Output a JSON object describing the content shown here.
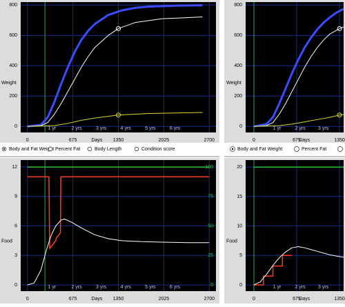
{
  "chart_data": [
    {
      "type": "line",
      "ylabel": "Weight",
      "xlabel": "Days",
      "xlim": [
        -100,
        2800
      ],
      "ylim": [
        -40,
        820
      ],
      "xticks": [
        0,
        675,
        1350,
        2025,
        2700
      ],
      "yticks": [
        0,
        200,
        400,
        600,
        800
      ],
      "grid": true,
      "year_ticks": [
        {
          "value": 365,
          "label": "1 yr"
        },
        {
          "value": 730,
          "label": "2 yrs"
        },
        {
          "value": 1095,
          "label": "3 yrs"
        },
        {
          "value": 1460,
          "label": "4 yrs"
        },
        {
          "value": 1825,
          "label": "5 yrs"
        },
        {
          "value": 2190,
          "label": "6 yrs"
        }
      ],
      "vline": 260,
      "vline_color": "#2fa84a",
      "series": [
        {
          "color": "#3a4cff",
          "width": 3,
          "x": [
            0,
            200,
            300,
            400,
            500,
            600,
            700,
            800,
            900,
            1000,
            1200,
            1400,
            1600,
            1800,
            2200,
            2600
          ],
          "values": [
            0,
            10,
            60,
            160,
            280,
            390,
            490,
            570,
            630,
            675,
            735,
            765,
            782,
            790,
            796,
            799
          ]
        },
        {
          "color": "#ffffff",
          "width": 1,
          "x": [
            0,
            200,
            300,
            400,
            500,
            600,
            700,
            800,
            900,
            1000,
            1200,
            1350,
            1600,
            2000,
            2600
          ],
          "values": [
            0,
            5,
            25,
            80,
            150,
            230,
            310,
            390,
            460,
            520,
            600,
            645,
            685,
            710,
            722
          ]
        },
        {
          "color": "#d8d830",
          "width": 1,
          "x": [
            0,
            400,
            600,
            800,
            1000,
            1350,
            1800,
            2600
          ],
          "values": [
            0,
            5,
            20,
            40,
            55,
            75,
            85,
            92
          ]
        }
      ],
      "markers": [
        {
          "x": 1350,
          "y": 645,
          "color": "#ffffff"
        },
        {
          "x": 1350,
          "y": 75,
          "color": "#d8d830"
        }
      ]
    },
    {
      "type": "line",
      "ylabel": "Weight",
      "xlabel": "Days",
      "xlim": [
        -130,
        1415
      ],
      "ylim": [
        -40,
        820
      ],
      "xticks": [
        0,
        675,
        1350
      ],
      "yticks": [
        0,
        200,
        400,
        600,
        800
      ],
      "grid": true,
      "year_ticks": [
        {
          "value": 365,
          "label": "1 yr"
        },
        {
          "value": 730,
          "label": "2 yrs"
        },
        {
          "value": 1095,
          "label": "3 yrs"
        }
      ],
      "vline": 0,
      "vline_color": "#2fa84a",
      "series": [
        {
          "color": "#3a4cff",
          "width": 3,
          "x": [
            0,
            200,
            300,
            400,
            500,
            600,
            700,
            800,
            900,
            1000,
            1100,
            1200,
            1300,
            1415
          ],
          "values": [
            0,
            15,
            60,
            150,
            250,
            350,
            440,
            520,
            585,
            640,
            685,
            720,
            750,
            775
          ]
        },
        {
          "color": "#ffffff",
          "width": 1,
          "x": [
            0,
            200,
            300,
            400,
            500,
            600,
            700,
            800,
            900,
            1000,
            1100,
            1200,
            1350,
            1415
          ],
          "values": [
            0,
            5,
            25,
            80,
            150,
            230,
            310,
            390,
            460,
            520,
            570,
            610,
            645,
            655
          ]
        },
        {
          "color": "#d8d830",
          "width": 1,
          "x": [
            0,
            400,
            600,
            800,
            1000,
            1200,
            1350,
            1415
          ],
          "values": [
            0,
            5,
            15,
            30,
            45,
            60,
            75,
            78
          ]
        }
      ],
      "markers": [
        {
          "x": 1350,
          "y": 645,
          "color": "#ffffff"
        },
        {
          "x": 1350,
          "y": 75,
          "color": "#d8d830"
        }
      ]
    },
    {
      "type": "line",
      "ylabel": "Food",
      "xlabel": "Days",
      "xlim": [
        -100,
        2800
      ],
      "ylim": [
        -0.63,
        12.7
      ],
      "xticks": [
        0,
        675,
        1350,
        2025,
        2700
      ],
      "yticks": [
        0,
        3,
        6,
        9,
        12
      ],
      "grid": true,
      "y2lim": [
        -5.3,
        105.9
      ],
      "y2ticks": [
        0,
        25,
        50,
        75,
        100
      ],
      "y2_color": "#2fbf3a",
      "year_ticks": [
        {
          "value": 365,
          "label": "1 yr"
        },
        {
          "value": 730,
          "label": "2 yrs"
        },
        {
          "value": 1095,
          "label": "3 yrs"
        },
        {
          "value": 1460,
          "label": "4 yrs"
        },
        {
          "value": 1825,
          "label": "5 yrs"
        },
        {
          "value": 2190,
          "label": "6 yrs"
        }
      ],
      "vline": 260,
      "vline_color": "#2fa84a",
      "series": [
        {
          "color": "#2fbf3a",
          "width": 1.5,
          "axis": "y2",
          "x": [
            0,
            2700
          ],
          "values": [
            100,
            100
          ]
        },
        {
          "color": "#ff3a1c",
          "width": 1.5,
          "x": [
            0,
            320,
            330,
            420,
            430,
            490,
            495,
            2700
          ],
          "values": [
            11,
            11,
            3.7,
            4.5,
            4.8,
            5.3,
            11,
            11
          ]
        },
        {
          "color": "#ffffff",
          "width": 1,
          "x": [
            0,
            100,
            200,
            280,
            350,
            420,
            500,
            550,
            650,
            800,
            1000,
            1200,
            1400,
            1700,
            2000,
            2400,
            2700
          ],
          "values": [
            0,
            0.2,
            1.5,
            3.5,
            5,
            6,
            6.6,
            6.7,
            6.4,
            5.8,
            5.1,
            4.7,
            4.5,
            4.4,
            4.35,
            4.3,
            4.3
          ]
        }
      ],
      "markers": []
    },
    {
      "type": "line",
      "ylabel": "Food",
      "xlabel": "Days",
      "xlim": [
        -130,
        1415
      ],
      "ylim": [
        -1.06,
        21.2
      ],
      "xticks": [
        0,
        675,
        1350
      ],
      "yticks": [
        0,
        5,
        10,
        15,
        20
      ],
      "grid": true,
      "year_ticks": [
        {
          "value": 365,
          "label": "1 yr"
        },
        {
          "value": 730,
          "label": "2 yrs"
        },
        {
          "value": 1095,
          "label": "3 yrs"
        }
      ],
      "vline": 0,
      "vline_color": "#2fa84a",
      "series": [
        {
          "color": "#2fbf3a",
          "width": 1.5,
          "x": [
            0,
            1415
          ],
          "values": [
            20,
            20
          ]
        },
        {
          "color": "#ff3a1c",
          "width": 1.5,
          "x": [
            0,
            150,
            150,
            300,
            300,
            450,
            450,
            600
          ],
          "values": [
            0,
            0,
            1.5,
            1.5,
            3.2,
            3.2,
            5,
            5
          ]
        },
        {
          "color": "#ffffff",
          "width": 1,
          "x": [
            0,
            100,
            200,
            300,
            400,
            500,
            600,
            700,
            800,
            900,
            1000,
            1100,
            1200,
            1300,
            1415
          ],
          "values": [
            0,
            0.5,
            1.8,
            3.3,
            4.6,
            5.6,
            6.3,
            6.5,
            6.3,
            6,
            5.7,
            5.4,
            5.1,
            4.9,
            4.7
          ]
        }
      ],
      "markers": []
    }
  ],
  "radio_groups": [
    {
      "options": [
        "Body and Fat Weight",
        "Percent Fat",
        "Body Length",
        "Condition score"
      ],
      "selected": 0
    },
    {
      "options": [
        "Body and Fat Weight",
        "Percent Fat"
      ],
      "selected": 0
    }
  ]
}
